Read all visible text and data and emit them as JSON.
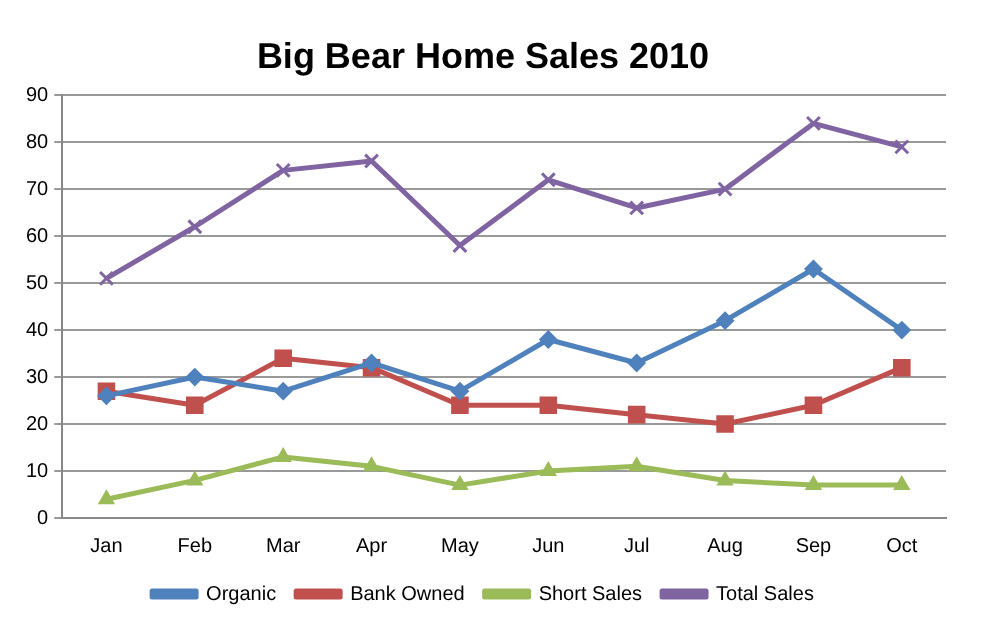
{
  "chart_data": {
    "type": "line",
    "title": "Big Bear Home Sales 2010",
    "categories": [
      "Jan",
      "Feb",
      "Mar",
      "Apr",
      "May",
      "Jun",
      "Jul",
      "Aug",
      "Sep",
      "Oct"
    ],
    "series": [
      {
        "name": "Organic",
        "color": "#4f81bd",
        "marker": "diamond",
        "values": [
          26,
          30,
          27,
          33,
          27,
          38,
          33,
          42,
          53,
          40
        ]
      },
      {
        "name": "Bank Owned",
        "color": "#c0504d",
        "marker": "square",
        "values": [
          27,
          24,
          34,
          32,
          24,
          24,
          22,
          20,
          24,
          32
        ]
      },
      {
        "name": "Short Sales",
        "color": "#9bbb59",
        "marker": "triangle",
        "values": [
          4,
          8,
          13,
          11,
          7,
          10,
          11,
          8,
          7,
          7
        ]
      },
      {
        "name": "Total Sales",
        "color": "#8064a2",
        "marker": "cross",
        "values": [
          51,
          62,
          74,
          76,
          58,
          72,
          66,
          70,
          84,
          79
        ]
      }
    ],
    "ylim": [
      0,
      90
    ],
    "yticks": [
      0,
      10,
      20,
      30,
      40,
      50,
      60,
      70,
      80,
      90
    ],
    "grid": "y",
    "legend": "bottom",
    "line_style": "solid"
  }
}
